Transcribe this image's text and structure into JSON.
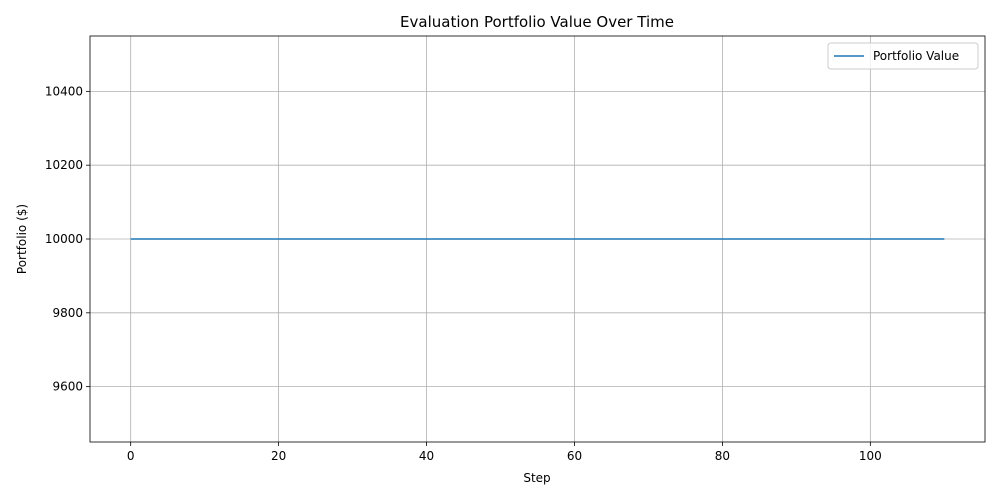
{
  "chart_data": {
    "type": "line",
    "title": "Evaluation Portfolio Value Over Time",
    "xlabel": "Step",
    "ylabel": "Portfolio ($)",
    "xlim": [
      -5.5,
      115.5
    ],
    "ylim": [
      9450,
      10550
    ],
    "xticks": [
      0,
      20,
      40,
      60,
      80,
      100
    ],
    "yticks": [
      9600,
      9800,
      10000,
      10200,
      10400
    ],
    "grid": true,
    "legend_position": "top-right",
    "series": [
      {
        "name": "Portfolio Value",
        "color": "#1f77b4",
        "x": [
          0,
          110
        ],
        "y": [
          10000,
          10000
        ]
      }
    ]
  }
}
